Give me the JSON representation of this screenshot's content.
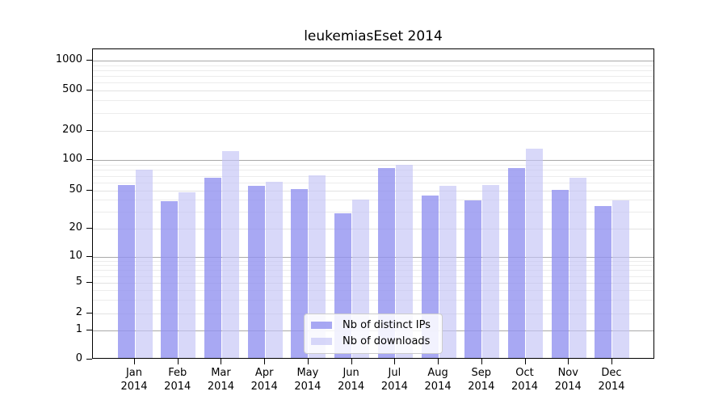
{
  "title": "leukemiasEset 2014",
  "legend": {
    "items": [
      {
        "label": "Nb of distinct IPs"
      },
      {
        "label": "Nb of downloads"
      }
    ]
  },
  "colors": {
    "distinct_ips_fill": "rgba(146,146,240,0.8)",
    "downloads_fill": "rgba(195,195,246,0.65)",
    "distinct_ips_hex_on_white": "#a8a8f3",
    "downloads_hex_on_white": "#d8d8f9",
    "major_grid": "#a9a9a9",
    "minor_grid": "#ececec"
  },
  "chart_data": {
    "type": "bar",
    "title": "leukemiasEset 2014",
    "categories": [
      "Jan 2014",
      "Feb 2014",
      "Mar 2014",
      "Apr 2014",
      "May 2014",
      "Jun 2014",
      "Jul 2014",
      "Aug 2014",
      "Sep 2014",
      "Oct 2014",
      "Nov 2014",
      "Dec 2014"
    ],
    "series": [
      {
        "name": "Nb of distinct IPs",
        "color": "rgba(146,146,240,0.8)",
        "values": [
          55,
          37,
          65,
          54,
          50,
          28,
          80,
          43,
          38,
          80,
          49,
          33
        ]
      },
      {
        "name": "Nb of downloads",
        "color": "rgba(195,195,246,0.65)",
        "values": [
          78,
          46,
          118,
          59,
          68,
          39,
          87,
          54,
          55,
          126,
          65,
          38
        ]
      }
    ],
    "y_axis": {
      "scale": "log-like",
      "ticks": [
        1000,
        500,
        200,
        100,
        50,
        20,
        10,
        5,
        2,
        1,
        0
      ]
    },
    "x_axis": {
      "tick_label_lines": 2
    },
    "legend_position": "inside-bottom-center",
    "grid": true
  }
}
